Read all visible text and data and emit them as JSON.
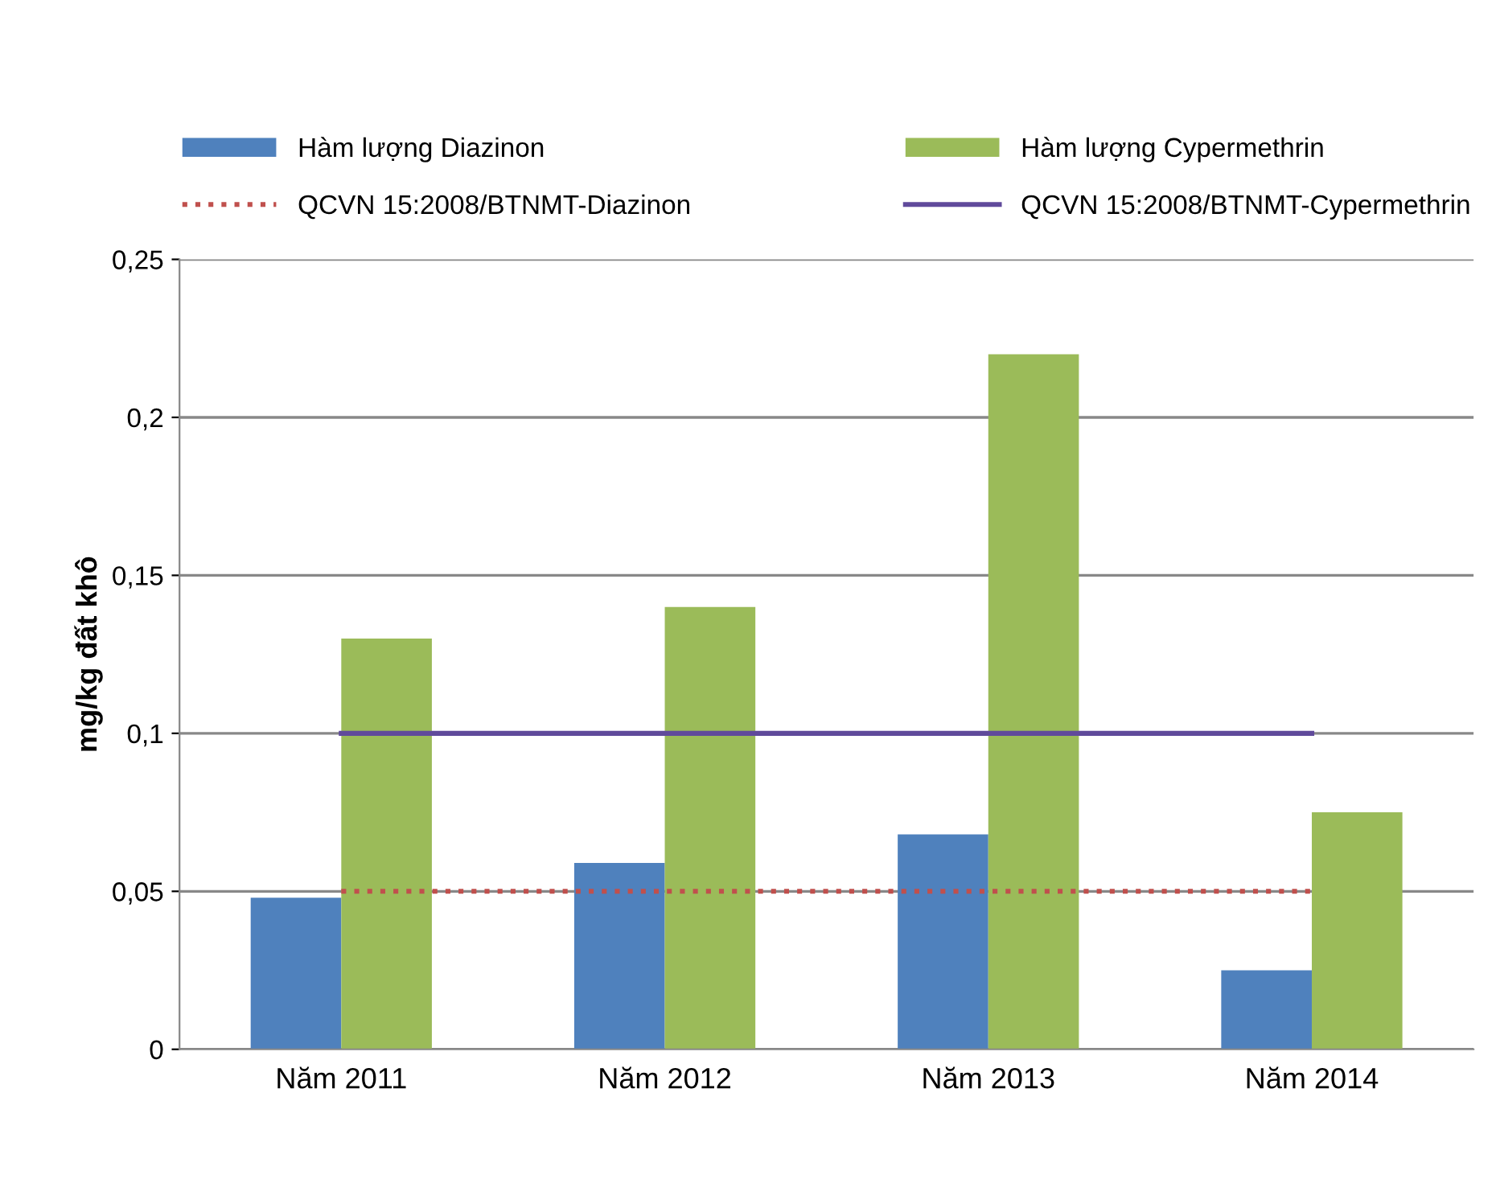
{
  "chart_data": {
    "type": "bar",
    "ylabel": "mg/kg đất khô",
    "categories": [
      "Năm 2011",
      "Năm 2012",
      "Năm 2013",
      "Năm 2014"
    ],
    "series": [
      {
        "name": "Hàm lượng Diazinon",
        "color": "#4f81bd",
        "values": [
          0.048,
          0.059,
          0.068,
          0.025
        ]
      },
      {
        "name": "Hàm lượng Cypermethrin",
        "color": "#9bbb59",
        "values": [
          0.13,
          0.14,
          0.22,
          0.075
        ]
      },
      {
        "name": "QCVN 15:2008/BTNMT-Diazinon",
        "type": "line",
        "color": "#c0504d",
        "line_style": "dotted",
        "values": [
          0.05,
          0.05,
          0.05,
          0.05
        ]
      },
      {
        "name": "QCVN 15:2008/BTNMT-Cypermethrin",
        "type": "line",
        "color": "#604a9b",
        "line_style": "solid",
        "values": [
          0.1,
          0.1,
          0.1,
          0.1
        ]
      }
    ],
    "ylim": [
      0,
      0.25
    ],
    "yticks": [
      {
        "value": 0,
        "label": "0"
      },
      {
        "value": 0.05,
        "label": "0,05"
      },
      {
        "value": 0.1,
        "label": "0,1"
      },
      {
        "value": 0.15,
        "label": "0,15"
      },
      {
        "value": 0.2,
        "label": "0,2"
      },
      {
        "value": 0.25,
        "label": "0,25"
      }
    ],
    "grid": "y",
    "legend": "top",
    "marker": "none"
  }
}
